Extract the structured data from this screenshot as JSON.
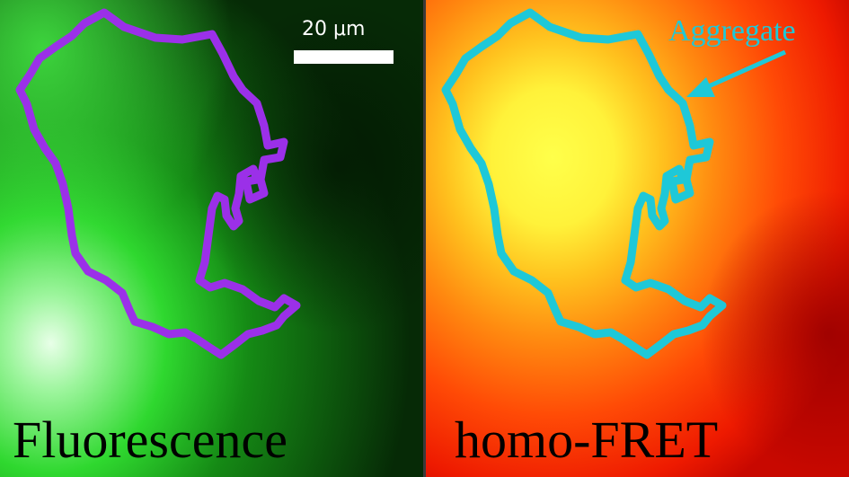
{
  "panels": {
    "left": {
      "caption": "Fluorescence",
      "outline_color": "#9b30e8"
    },
    "right": {
      "caption": "homo-FRET",
      "outline_color": "#1ec8d8"
    }
  },
  "scalebar": {
    "label": "20 μm"
  },
  "annotation": {
    "label": "Aggregate",
    "color": "#1ec8d8"
  }
}
